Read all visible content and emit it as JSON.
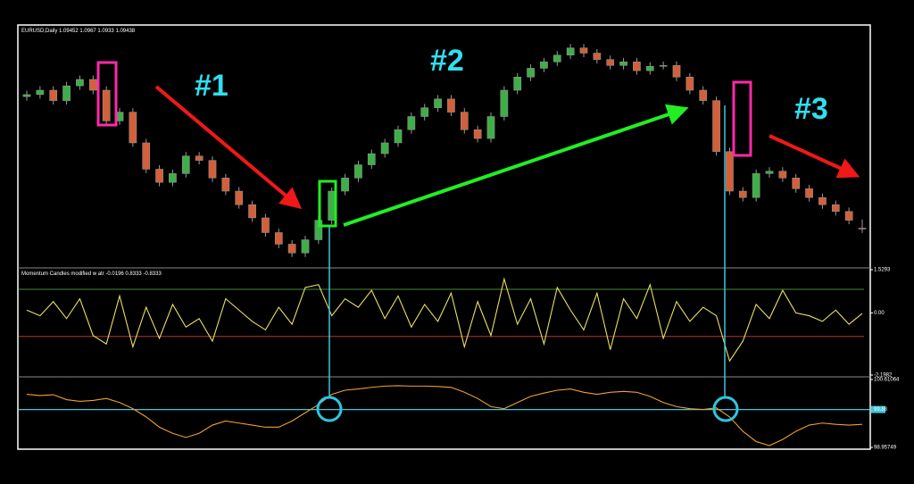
{
  "chart_data": [
    {
      "type": "candlestick",
      "title": "EURUSD,Daily",
      "annotations": [
        "#1",
        "#2",
        "#3"
      ],
      "up_color": "#3fae49",
      "down_color": "#d2603a",
      "wick_color": "#9a9a9a",
      "ylim": [
        1.085,
        1.145
      ],
      "open": [
        1.1275,
        1.128,
        1.1291,
        1.1265,
        1.1302,
        1.1318,
        1.1291,
        1.1214,
        1.1236,
        1.1159,
        1.1093,
        1.106,
        1.1082,
        1.1126,
        1.1115,
        1.1071,
        1.1038,
        1.1004,
        1.0971,
        1.0934,
        1.0905,
        1.0883,
        1.0916,
        1.0965,
        1.1038,
        1.1071,
        1.1104,
        1.1132,
        1.1159,
        1.1192,
        1.1225,
        1.1247,
        1.1269,
        1.1236,
        1.1192,
        1.117,
        1.1225,
        1.1291,
        1.1324,
        1.1346,
        1.1362,
        1.1379,
        1.1397,
        1.1384,
        1.1368,
        1.1353,
        1.1362,
        1.134,
        1.1351,
        1.1353,
        1.1324,
        1.1291,
        1.1265,
        1.1137,
        1.1038,
        1.1022,
        1.1082,
        1.1088,
        1.1071,
        1.1044,
        1.1022,
        1.1004,
        1.0987,
        1.09452
      ],
      "high": [
        1.129,
        1.1301,
        1.1301,
        1.1312,
        1.1328,
        1.1328,
        1.1301,
        1.1246,
        1.1246,
        1.1169,
        1.1103,
        1.1092,
        1.1136,
        1.1136,
        1.1125,
        1.1081,
        1.1048,
        1.1014,
        1.0981,
        1.0944,
        1.0915,
        1.0926,
        1.0975,
        1.1048,
        1.1081,
        1.1114,
        1.1142,
        1.1169,
        1.1202,
        1.1235,
        1.1257,
        1.1279,
        1.1279,
        1.1246,
        1.1202,
        1.1235,
        1.1301,
        1.1334,
        1.1356,
        1.1372,
        1.1389,
        1.1407,
        1.1407,
        1.1394,
        1.1378,
        1.1372,
        1.1372,
        1.1361,
        1.1363,
        1.1363,
        1.1334,
        1.1301,
        1.1275,
        1.1147,
        1.1048,
        1.1092,
        1.1098,
        1.1098,
        1.1081,
        1.1054,
        1.1032,
        1.1014,
        1.0997,
        1.0967
      ],
      "low": [
        1.1265,
        1.127,
        1.1255,
        1.1255,
        1.1292,
        1.1281,
        1.1204,
        1.1204,
        1.1149,
        1.1083,
        1.105,
        1.105,
        1.1072,
        1.1105,
        1.1061,
        1.1028,
        1.0994,
        1.0961,
        1.0924,
        1.0895,
        1.0873,
        1.0873,
        1.0906,
        1.0955,
        1.1028,
        1.1061,
        1.1094,
        1.1122,
        1.1149,
        1.1182,
        1.1215,
        1.1237,
        1.1226,
        1.1182,
        1.116,
        1.116,
        1.1215,
        1.1281,
        1.1314,
        1.1336,
        1.1352,
        1.1369,
        1.1374,
        1.1358,
        1.1343,
        1.1343,
        1.133,
        1.133,
        1.1343,
        1.1314,
        1.1281,
        1.1255,
        1.1127,
        1.1028,
        1.1012,
        1.1012,
        1.1072,
        1.1061,
        1.1034,
        1.1012,
        1.0994,
        1.0977,
        1.0955,
        1.0933
      ],
      "close": [
        1.128,
        1.1291,
        1.1265,
        1.1302,
        1.1318,
        1.1291,
        1.1214,
        1.1236,
        1.1159,
        1.1093,
        1.106,
        1.1082,
        1.1126,
        1.1115,
        1.1071,
        1.1038,
        1.1004,
        1.0971,
        1.0934,
        1.0905,
        1.0883,
        1.0916,
        1.0965,
        1.1038,
        1.1071,
        1.1104,
        1.1132,
        1.1159,
        1.1192,
        1.1225,
        1.1247,
        1.1269,
        1.1236,
        1.1192,
        1.117,
        1.1225,
        1.1291,
        1.1324,
        1.1346,
        1.1362,
        1.1379,
        1.1397,
        1.1384,
        1.1368,
        1.1353,
        1.1362,
        1.134,
        1.1351,
        1.1353,
        1.1324,
        1.1291,
        1.1265,
        1.1137,
        1.1038,
        1.1022,
        1.1082,
        1.1088,
        1.1071,
        1.1044,
        1.1022,
        1.1004,
        1.0987,
        1.0965,
        1.09438
      ]
    },
    {
      "type": "line",
      "title": "Momentum Candles modified w atr",
      "color": "#e8e060",
      "ylim": [
        -2.1982,
        1.5293
      ],
      "yticks": [
        1.5293,
        {
          "value": 0,
          "label": "0.00"
        },
        -2.1982
      ],
      "levels": [
        {
          "value": 0.8333,
          "color": "#4a8a3a"
        },
        {
          "value": -0.8333,
          "color": "#b03a2a"
        }
      ],
      "values": [
        0.1,
        -0.1,
        0.4,
        -0.2,
        0.5,
        -0.8,
        -1.1,
        0.6,
        -1.2,
        0.2,
        -0.9,
        0.3,
        -0.5,
        -0.2,
        -1.0,
        0.5,
        0.1,
        -0.3,
        -0.6,
        0.2,
        -0.4,
        0.9,
        1.0,
        -0.1,
        0.5,
        0.2,
        0.8,
        -0.2,
        0.6,
        -0.5,
        0.3,
        -0.3,
        0.7,
        -1.2,
        0.4,
        -0.8,
        1.2,
        -0.4,
        0.5,
        -1.1,
        0.9,
        0.1,
        -0.6,
        0.7,
        -1.3,
        0.5,
        -0.2,
        1.0,
        -0.9,
        0.4,
        -0.3,
        0.2,
        -0.1,
        -1.7,
        -1.0,
        0.3,
        -0.2,
        0.8,
        0.0,
        -0.1,
        -0.3,
        0.1,
        -0.4,
        -0.0196
      ]
    },
    {
      "type": "line",
      "color": "#f0a030",
      "level_line_color": "#3ec6dc",
      "ylim": [
        98.95749,
        100.61064
      ],
      "yticks": [
        100.61064,
        99.88,
        98.95749
      ],
      "values": [
        100.25,
        100.22,
        100.24,
        100.12,
        100.08,
        100.1,
        100.15,
        100.05,
        99.9,
        99.7,
        99.45,
        99.3,
        99.2,
        99.3,
        99.5,
        99.6,
        99.55,
        99.5,
        99.45,
        99.45,
        99.6,
        99.8,
        100.0,
        100.25,
        100.35,
        100.38,
        100.42,
        100.45,
        100.46,
        100.45,
        100.45,
        100.44,
        100.42,
        100.3,
        100.15,
        99.95,
        99.9,
        100.05,
        100.2,
        100.28,
        100.35,
        100.38,
        100.3,
        100.25,
        100.3,
        100.32,
        100.3,
        100.2,
        100.05,
        99.95,
        99.9,
        99.88,
        99.92,
        99.7,
        99.35,
        99.1,
        99.0,
        99.15,
        99.35,
        99.5,
        99.55,
        99.52,
        99.5,
        99.52
      ]
    }
  ]
}
